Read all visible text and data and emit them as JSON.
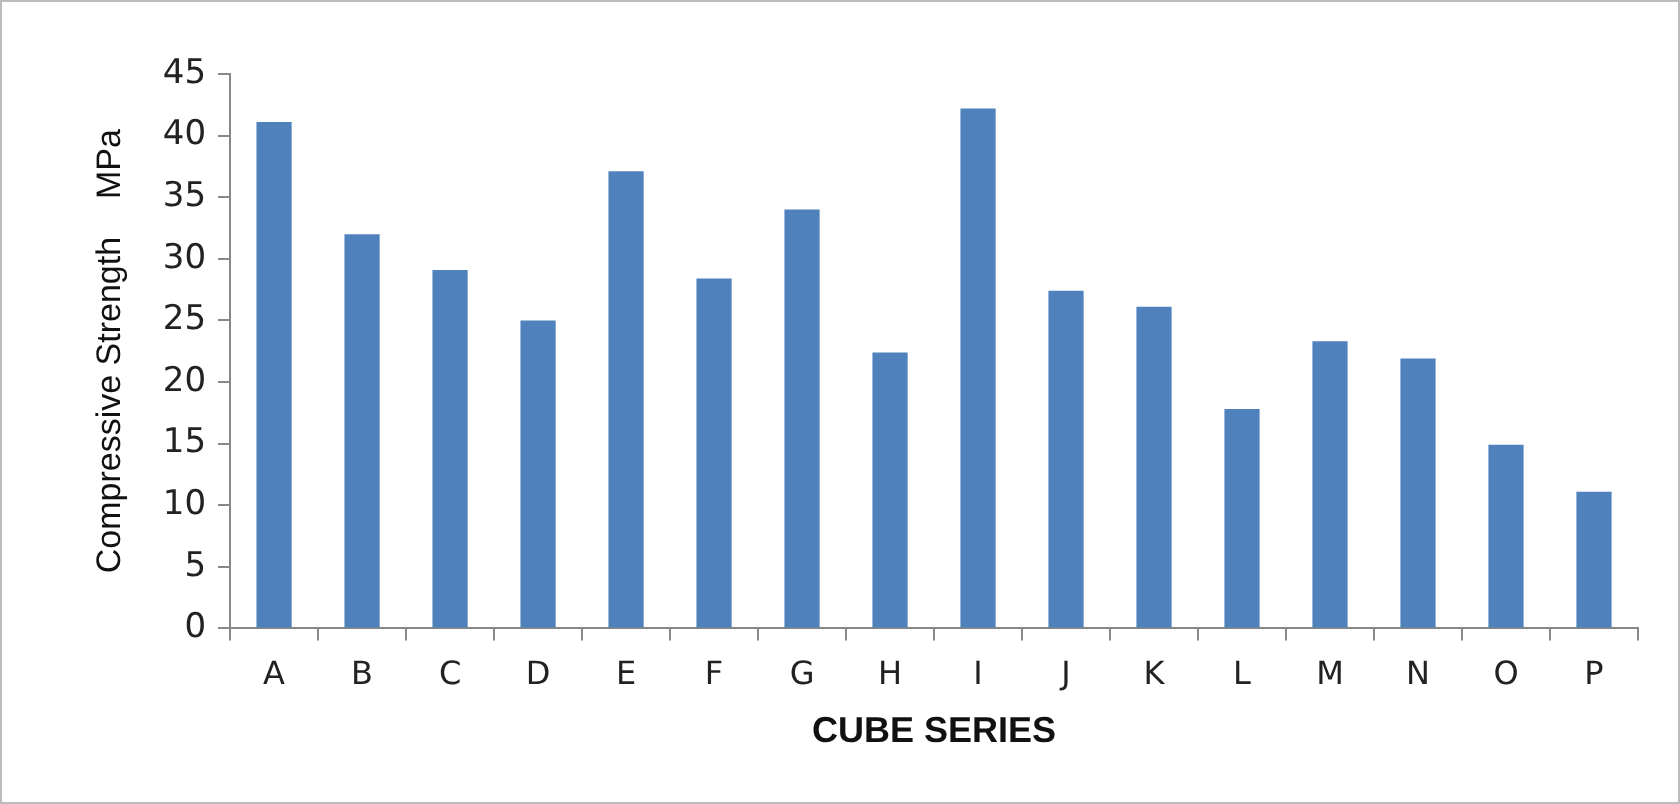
{
  "chart_data": {
    "type": "bar",
    "xlabel": "CUBE SERIES",
    "ylabel": "Compressive Strength    MPa",
    "categories": [
      "A",
      "B",
      "C",
      "D",
      "E",
      "F",
      "G",
      "H",
      "I",
      "J",
      "K",
      "L",
      "M",
      "N",
      "O",
      "P"
    ],
    "series": [
      {
        "color": "#4f81bd",
        "values": [
          41.1,
          32.0,
          29.1,
          25.0,
          37.1,
          28.4,
          34.0,
          22.4,
          42.2,
          27.4,
          26.1,
          17.8,
          23.3,
          21.9,
          14.9,
          11.1
        ]
      }
    ],
    "ylim": [
      0,
      45
    ],
    "yticks": [
      0,
      5,
      10,
      15,
      20,
      25,
      30,
      35,
      40,
      45
    ],
    "grid": false,
    "legend": false
  }
}
